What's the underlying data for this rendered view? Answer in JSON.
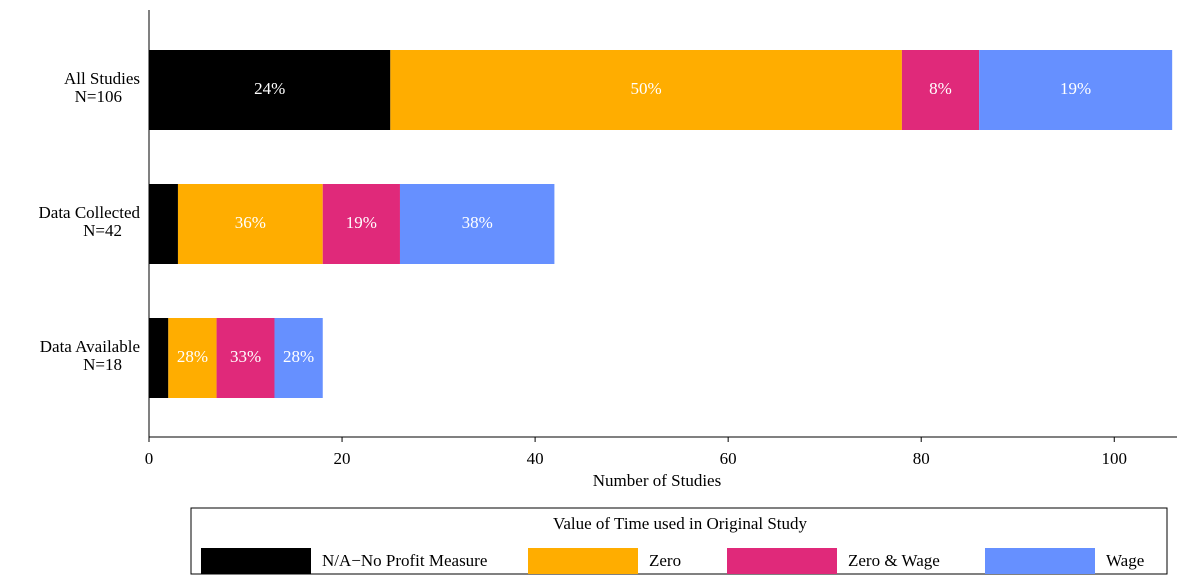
{
  "chart_data": {
    "type": "stacked-bar-horizontal",
    "categories": [
      "All Studies",
      "Data Collected",
      "Data Available"
    ],
    "category_notes": [
      "N=106",
      "N=42",
      "N=18"
    ],
    "xlabel": "Number of Studies",
    "xlim": [
      0,
      106.5
    ],
    "xticks": [
      0,
      20,
      40,
      60,
      80,
      100
    ],
    "legend_title": "Value of Time used in Original Study",
    "series": [
      {
        "name": "N/A−No Profit Measure",
        "color": "#000000",
        "values": [
          25,
          3,
          2
        ],
        "share_labels": [
          "24%",
          null,
          null
        ]
      },
      {
        "name": "Zero",
        "color": "#ffad00",
        "values": [
          53,
          15,
          5
        ],
        "share_labels": [
          "50%",
          "36%",
          "28%"
        ]
      },
      {
        "name": "Zero & Wage",
        "color": "#e0297a",
        "values": [
          8,
          8,
          6
        ],
        "share_labels": [
          "8%",
          "19%",
          "33%"
        ]
      },
      {
        "name": "Wage",
        "color": "#6690ff",
        "values": [
          20,
          16,
          5
        ],
        "share_labels": [
          "19%",
          "38%",
          "28%"
        ]
      }
    ]
  }
}
